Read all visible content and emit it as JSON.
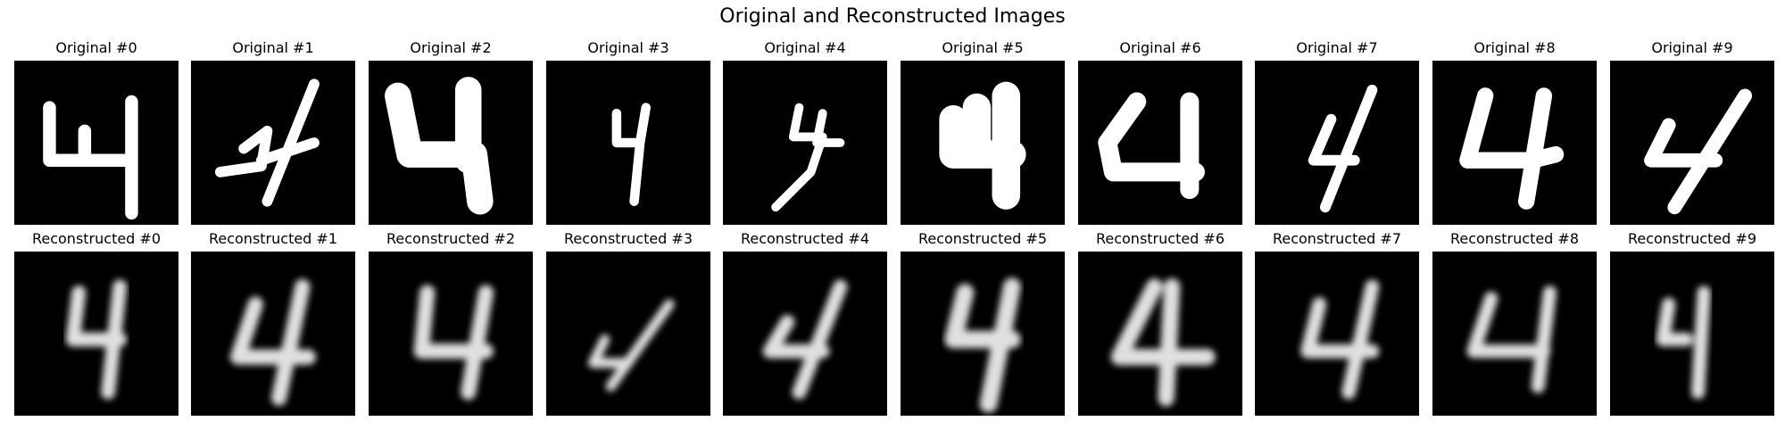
{
  "figure": {
    "title": "Original and Reconstructed Images"
  },
  "rows": [
    {
      "kind": "original",
      "panels": [
        {
          "title": "Original #0"
        },
        {
          "title": "Original #1"
        },
        {
          "title": "Original #2"
        },
        {
          "title": "Original #3"
        },
        {
          "title": "Original #4"
        },
        {
          "title": "Original #5"
        },
        {
          "title": "Original #6"
        },
        {
          "title": "Original #7"
        },
        {
          "title": "Original #8"
        },
        {
          "title": "Original #9"
        }
      ]
    },
    {
      "kind": "reconstructed",
      "panels": [
        {
          "title": "Reconstructed #0"
        },
        {
          "title": "Reconstructed #1"
        },
        {
          "title": "Reconstructed #2"
        },
        {
          "title": "Reconstructed #3"
        },
        {
          "title": "Reconstructed #4"
        },
        {
          "title": "Reconstructed #5"
        },
        {
          "title": "Reconstructed #6"
        },
        {
          "title": "Reconstructed #7"
        },
        {
          "title": "Reconstructed #8"
        },
        {
          "title": "Reconstructed #9"
        }
      ]
    }
  ],
  "colors": {
    "background": "#000000",
    "digit": "#ffffff"
  }
}
